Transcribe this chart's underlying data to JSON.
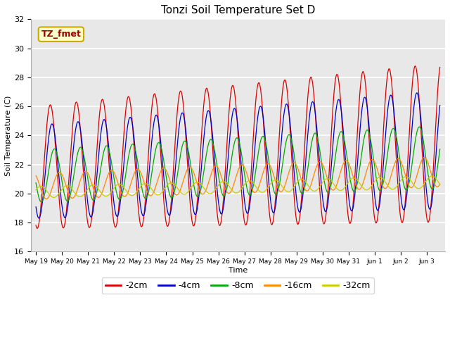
{
  "title": "Tonzi Soil Temperature Set D",
  "xlabel": "Time",
  "ylabel": "Soil Temperature (C)",
  "ylim": [
    16,
    32
  ],
  "yticks": [
    16,
    18,
    20,
    22,
    24,
    26,
    28,
    30,
    32
  ],
  "annotation_text": "TZ_fmet",
  "annotation_color": "#990000",
  "annotation_bg": "#ffffcc",
  "annotation_border": "#ccaa00",
  "bg_color": "#e8e8e8",
  "series": [
    {
      "label": "-2cm",
      "color": "#dd0000",
      "amplitude": 4.2,
      "phase": 0.0,
      "base_start": 21.8,
      "base_end": 23.5,
      "amp_grow": 1.0
    },
    {
      "label": "-4cm",
      "color": "#0000cc",
      "amplitude": 3.2,
      "phase": 0.4,
      "base_start": 21.5,
      "base_end": 23.0,
      "amp_grow": 0.9
    },
    {
      "label": "-8cm",
      "color": "#00aa00",
      "amplitude": 1.8,
      "phase": 1.0,
      "base_start": 21.2,
      "base_end": 22.5,
      "amp_grow": 0.7
    },
    {
      "label": "-16cm",
      "color": "#ff8800",
      "amplitude": 0.9,
      "phase": 2.2,
      "base_start": 20.5,
      "base_end": 21.5,
      "amp_grow": 0.5
    },
    {
      "label": "-32cm",
      "color": "#cccc00",
      "amplitude": 0.4,
      "phase": 4.0,
      "base_start": 20.1,
      "base_end": 20.8,
      "amp_grow": 0.2
    }
  ],
  "n_days": 15.5,
  "points_per_day": 144,
  "start_day": 19,
  "xtick_days": [
    19,
    20,
    21,
    22,
    23,
    24,
    25,
    26,
    27,
    28,
    29,
    30,
    31,
    32,
    33,
    34
  ],
  "xtick_labels": [
    "May 19",
    "May 20",
    "May 21",
    "May 22",
    "May 23",
    "May 24",
    "May 25",
    "May 26",
    "May 27",
    "May 28",
    "May 29",
    "May 30",
    "May 31",
    "Jun 1",
    "Jun 2",
    "Jun 3"
  ]
}
